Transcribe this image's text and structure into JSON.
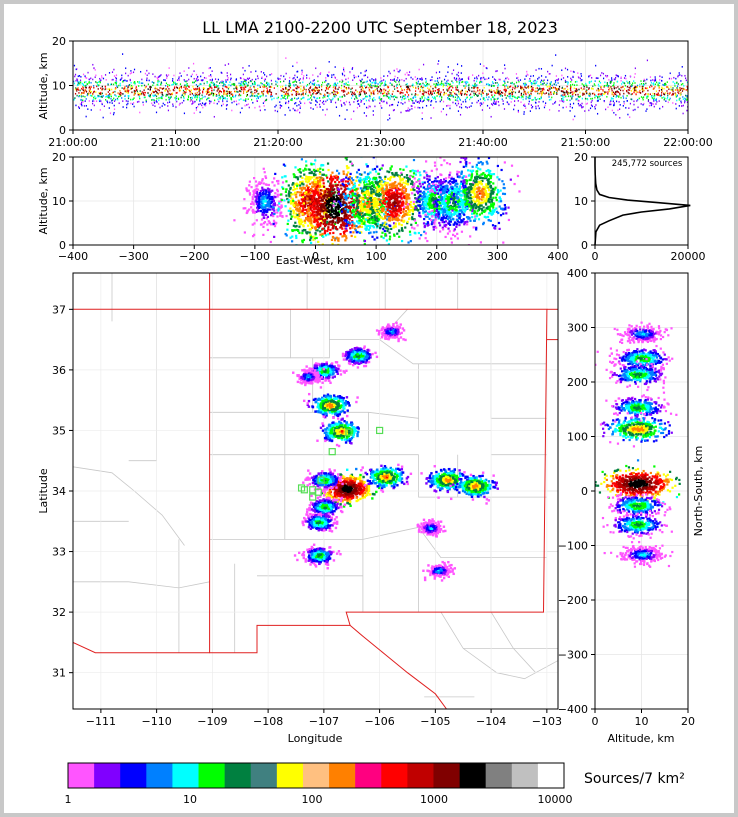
{
  "chart_data": [
    {
      "type": "scatter",
      "panel": "altitude-time",
      "title": "LL LMA 2100-2200 UTC September 18, 2023",
      "ylabel": "Altitude, km",
      "ylim": [
        0,
        20
      ],
      "yticks": [
        "0",
        "10",
        "20"
      ],
      "xticks": [
        "21:00:00",
        "21:10:00",
        "21:20:00",
        "21:30:00",
        "21:40:00",
        "21:50:00",
        "22:00:00"
      ],
      "xlim_minutes": [
        0,
        60
      ],
      "dense_altitude_band_km": [
        5,
        13
      ],
      "peak_altitude_km": 9
    },
    {
      "type": "scatter",
      "panel": "altitude-eastwest",
      "ylabel": "Altitude, km",
      "xlabel": "East-West, km",
      "xlim": [
        -400,
        400
      ],
      "ylim": [
        0,
        20
      ],
      "xticks": [
        "−400",
        "−300",
        "−200",
        "−100",
        "0",
        "100",
        "200",
        "300",
        "400"
      ],
      "yticks": [
        "0",
        "10",
        "20"
      ],
      "clusters": [
        {
          "x": -85,
          "alt": 10,
          "intensity": 2
        },
        {
          "x": -10,
          "alt": 10,
          "intensity": 5
        },
        {
          "x": 30,
          "alt": 9,
          "intensity": 6
        },
        {
          "x": 85,
          "alt": 10,
          "intensity": 4
        },
        {
          "x": 128,
          "alt": 10,
          "intensity": 5
        },
        {
          "x": 195,
          "alt": 10,
          "intensity": 3
        },
        {
          "x": 225,
          "alt": 10,
          "intensity": 3
        },
        {
          "x": 270,
          "alt": 12,
          "intensity": 4
        }
      ]
    },
    {
      "type": "line",
      "panel": "altitude-histogram",
      "annotation": "245,772 sources",
      "xlim": [
        0,
        20000
      ],
      "ylim": [
        0,
        20
      ],
      "xticks": [
        "0",
        "20000"
      ],
      "yticks": [
        "0",
        "10",
        "20"
      ],
      "points": [
        [
          0,
          0
        ],
        [
          200,
          3
        ],
        [
          1000,
          4.5
        ],
        [
          3000,
          5.5
        ],
        [
          6000,
          6.8
        ],
        [
          10000,
          7.5
        ],
        [
          16000,
          8.2
        ],
        [
          20500,
          9
        ],
        [
          14000,
          9.6
        ],
        [
          7000,
          10.2
        ],
        [
          3000,
          10.8
        ],
        [
          1000,
          11.5
        ],
        [
          400,
          12.5
        ],
        [
          150,
          14
        ],
        [
          50,
          16
        ],
        [
          10,
          18
        ],
        [
          0,
          20
        ]
      ]
    },
    {
      "type": "heatmap",
      "panel": "plan-view",
      "xlabel": "Longitude",
      "ylabel": "Latitude",
      "xlim": [
        -111.5,
        -102.8
      ],
      "ylim": [
        30.4,
        37.6
      ],
      "xticks": [
        "−111",
        "−110",
        "−109",
        "−108",
        "−107",
        "−106",
        "−105",
        "−104",
        "−103"
      ],
      "yticks": [
        "31",
        "32",
        "33",
        "34",
        "35",
        "36",
        "37"
      ],
      "clusters": [
        {
          "lon": -105.8,
          "lat": 36.65,
          "intensity": 2
        },
        {
          "lon": -106.4,
          "lat": 36.25,
          "intensity": 3
        },
        {
          "lon": -107.0,
          "lat": 36.0,
          "intensity": 3
        },
        {
          "lon": -107.3,
          "lat": 35.9,
          "intensity": 2
        },
        {
          "lon": -106.9,
          "lat": 35.43,
          "intensity": 4
        },
        {
          "lon": -106.7,
          "lat": 35.0,
          "intensity": 4
        },
        {
          "lon": -106.6,
          "lat": 34.05,
          "intensity": 6
        },
        {
          "lon": -107.0,
          "lat": 34.2,
          "intensity": 3
        },
        {
          "lon": -105.9,
          "lat": 34.25,
          "intensity": 4
        },
        {
          "lon": -104.8,
          "lat": 34.2,
          "intensity": 4
        },
        {
          "lon": -104.3,
          "lat": 34.1,
          "intensity": 4
        },
        {
          "lon": -107.0,
          "lat": 33.75,
          "intensity": 3
        },
        {
          "lon": -107.1,
          "lat": 33.5,
          "intensity": 3
        },
        {
          "lon": -107.1,
          "lat": 32.95,
          "intensity": 3
        },
        {
          "lon": -105.1,
          "lat": 33.4,
          "intensity": 2
        },
        {
          "lon": -104.95,
          "lat": 32.7,
          "intensity": 2
        }
      ],
      "stations": [
        [
          -107.35,
          34.02
        ],
        [
          -107.2,
          34.02
        ],
        [
          -107.1,
          33.98
        ],
        [
          -107.05,
          34.18
        ],
        [
          -106.85,
          34.65
        ],
        [
          -106.55,
          34.97
        ],
        [
          -106.0,
          35.0
        ],
        [
          -107.2,
          33.9
        ],
        [
          -107.4,
          34.05
        ]
      ]
    },
    {
      "type": "heatmap",
      "panel": "northsouth-altitude",
      "xlabel": "Altitude, km",
      "ylabel": "North-South, km",
      "xlim": [
        0,
        20
      ],
      "ylim": [
        -400,
        400
      ],
      "xticks": [
        "0",
        "10",
        "20"
      ],
      "yticks": [
        "−400",
        "−300",
        "−200",
        "−100",
        "0",
        "100",
        "200",
        "300",
        "400"
      ],
      "clusters": [
        {
          "alt": 10,
          "ns": 290,
          "intensity": 2
        },
        {
          "alt": 10,
          "ns": 245,
          "intensity": 3
        },
        {
          "alt": 9,
          "ns": 215,
          "intensity": 3
        },
        {
          "alt": 9,
          "ns": 155,
          "intensity": 3
        },
        {
          "alt": 9,
          "ns": 115,
          "intensity": 4
        },
        {
          "alt": 9,
          "ns": 15,
          "intensity": 6
        },
        {
          "alt": 9,
          "ns": -25,
          "intensity": 3
        },
        {
          "alt": 9,
          "ns": -60,
          "intensity": 3
        },
        {
          "alt": 10,
          "ns": -115,
          "intensity": 2
        }
      ]
    }
  ],
  "colorbar": {
    "label": "Sources/7 km²",
    "ticks": [
      "1",
      "10",
      "100",
      "1000",
      "10000"
    ],
    "colors": [
      "#ff55ff",
      "#8000ff",
      "#0000ff",
      "#0080ff",
      "#00ffff",
      "#00ff00",
      "#008040",
      "#408080",
      "#ffff00",
      "#ffc080",
      "#ff8000",
      "#ff0080",
      "#ff0000",
      "#c00000",
      "#800000",
      "#000000",
      "#808080",
      "#c0c0c0",
      "#ffffff"
    ]
  }
}
